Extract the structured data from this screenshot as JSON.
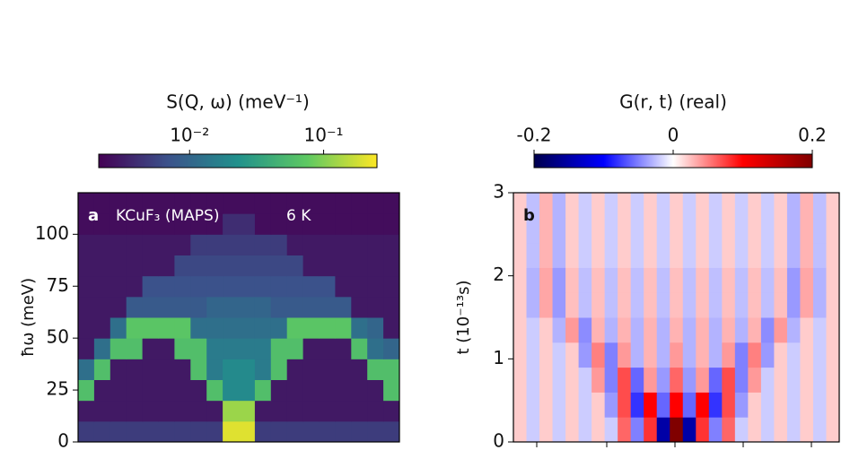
{
  "chart_data": [
    {
      "type": "heatmap",
      "panel_label": "a",
      "annotations": [
        "KCuF₃ (MAPS)",
        "6 K"
      ],
      "colorbar_label": "S(Q, ω) (meV⁻¹)",
      "ylabel": "ħω (meV)",
      "colormap": "viridis",
      "log_color": true,
      "clim": [
        0.0021,
        0.25
      ],
      "cticks": [
        {
          "value": 0.01,
          "label": "10⁻²"
        },
        {
          "value": 0.1,
          "label": "10⁻¹"
        }
      ],
      "ylim": [
        0,
        120
      ],
      "yticks": [
        0,
        25,
        50,
        75,
        100
      ],
      "ybins": [
        0,
        10,
        20,
        30,
        40,
        50,
        60,
        70,
        80,
        90,
        100,
        110,
        120
      ],
      "z": [
        [
          0.005,
          0.005,
          0.005,
          0.005,
          0.005,
          0.005,
          0.005,
          0.005,
          0.005,
          0.2,
          0.2,
          0.005,
          0.005,
          0.005,
          0.005,
          0.005,
          0.005,
          0.005,
          0.005,
          0.005
        ],
        [
          0.003,
          0.003,
          0.003,
          0.003,
          0.003,
          0.003,
          0.003,
          0.003,
          0.003,
          0.12,
          0.12,
          0.003,
          0.003,
          0.003,
          0.003,
          0.003,
          0.003,
          0.003,
          0.003,
          0.003
        ],
        [
          0.06,
          0.003,
          0.003,
          0.003,
          0.003,
          0.003,
          0.003,
          0.003,
          0.06,
          0.02,
          0.02,
          0.06,
          0.003,
          0.003,
          0.003,
          0.003,
          0.003,
          0.003,
          0.003,
          0.06
        ],
        [
          0.012,
          0.06,
          0.003,
          0.003,
          0.003,
          0.003,
          0.003,
          0.06,
          0.015,
          0.02,
          0.02,
          0.015,
          0.06,
          0.003,
          0.003,
          0.003,
          0.003,
          0.003,
          0.06,
          0.06
        ],
        [
          0.003,
          0.012,
          0.06,
          0.06,
          0.003,
          0.003,
          0.06,
          0.06,
          0.015,
          0.015,
          0.015,
          0.015,
          0.06,
          0.06,
          0.003,
          0.003,
          0.003,
          0.06,
          0.012,
          0.01
        ],
        [
          0.003,
          0.003,
          0.012,
          0.07,
          0.07,
          0.07,
          0.07,
          0.012,
          0.012,
          0.012,
          0.012,
          0.012,
          0.012,
          0.07,
          0.07,
          0.07,
          0.07,
          0.012,
          0.01,
          0.003
        ],
        [
          0.003,
          0.003,
          0.003,
          0.008,
          0.008,
          0.008,
          0.008,
          0.008,
          0.01,
          0.01,
          0.01,
          0.01,
          0.008,
          0.008,
          0.008,
          0.008,
          0.008,
          0.003,
          0.003,
          0.003
        ],
        [
          0.003,
          0.003,
          0.003,
          0.003,
          0.007,
          0.007,
          0.007,
          0.007,
          0.007,
          0.007,
          0.007,
          0.007,
          0.007,
          0.007,
          0.007,
          0.007,
          0.003,
          0.003,
          0.003,
          0.003
        ],
        [
          0.003,
          0.003,
          0.003,
          0.003,
          0.003,
          0.003,
          0.006,
          0.006,
          0.006,
          0.006,
          0.006,
          0.006,
          0.006,
          0.006,
          0.003,
          0.003,
          0.003,
          0.003,
          0.003,
          0.003
        ],
        [
          0.003,
          0.003,
          0.003,
          0.003,
          0.003,
          0.003,
          0.003,
          0.005,
          0.005,
          0.005,
          0.005,
          0.005,
          0.005,
          0.003,
          0.003,
          0.003,
          0.003,
          0.003,
          0.003,
          0.003
        ],
        [
          0.0025,
          0.0025,
          0.0025,
          0.0025,
          0.0025,
          0.0025,
          0.0025,
          0.0025,
          0.0025,
          0.004,
          0.004,
          0.0025,
          0.0025,
          0.0025,
          0.0025,
          0.0025,
          0.0025,
          0.0025,
          0.0025,
          0.0025
        ],
        [
          0.0025,
          0.0025,
          0.0025,
          0.0025,
          0.0025,
          0.0025,
          0.0025,
          0.0025,
          0.0025,
          0.0025,
          0.0025,
          0.0025,
          0.0025,
          0.0025,
          0.0025,
          0.0025,
          0.0025,
          0.0025,
          0.0025,
          0.0025
        ]
      ]
    },
    {
      "type": "heatmap",
      "panel_label": "b",
      "colorbar_label": "G(r, t) (real)",
      "ylabel": "t (10⁻¹³s)",
      "colormap": "seismic",
      "log_color": false,
      "clim": [
        -0.2,
        0.2
      ],
      "cticks": [
        -0.2,
        0,
        0.2
      ],
      "ylim": [
        0,
        3
      ],
      "yticks": [
        0,
        1,
        2,
        3
      ],
      "ybins": [
        0,
        0.3,
        0.6,
        0.9,
        1.2,
        1.5,
        1.8,
        2.1,
        2.4,
        2.7,
        3
      ],
      "z": [
        [
          0.02,
          -0.02,
          0.02,
          -0.02,
          0.02,
          -0.02,
          0.02,
          -0.02,
          0.06,
          -0.05,
          0.08,
          -0.15,
          0.2,
          -0.15,
          0.08,
          -0.05,
          0.06,
          -0.02,
          0.02,
          -0.02,
          0.02,
          -0.02,
          0.02,
          -0.02,
          0.02
        ],
        [
          0.02,
          -0.02,
          0.02,
          -0.02,
          0.02,
          -0.02,
          0.02,
          -0.04,
          0.07,
          -0.08,
          0.1,
          -0.06,
          0.1,
          -0.06,
          0.1,
          -0.08,
          0.07,
          -0.04,
          0.02,
          -0.02,
          0.02,
          -0.02,
          0.02,
          -0.02,
          0.02
        ],
        [
          0.02,
          -0.02,
          0.02,
          -0.02,
          0.02,
          -0.02,
          0.04,
          -0.05,
          0.07,
          -0.06,
          0.04,
          -0.04,
          0.06,
          -0.04,
          0.04,
          -0.06,
          0.07,
          -0.05,
          0.04,
          -0.02,
          0.02,
          -0.02,
          0.02,
          -0.02,
          0.02
        ],
        [
          0.02,
          -0.02,
          0.02,
          -0.02,
          0.02,
          -0.04,
          0.05,
          -0.05,
          0.04,
          -0.03,
          0.03,
          -0.03,
          0.04,
          -0.03,
          0.03,
          -0.03,
          0.04,
          -0.05,
          0.05,
          -0.04,
          0.02,
          -0.02,
          0.02,
          -0.02,
          0.02
        ],
        [
          0.02,
          -0.02,
          0.02,
          -0.03,
          0.04,
          -0.045,
          0.03,
          -0.03,
          0.03,
          -0.03,
          0.03,
          -0.03,
          0.03,
          -0.03,
          0.03,
          -0.03,
          0.03,
          -0.03,
          0.03,
          -0.045,
          0.04,
          -0.03,
          0.02,
          -0.02,
          0.02
        ],
        [
          0.02,
          -0.03,
          0.035,
          -0.04,
          0.025,
          -0.025,
          0.025,
          -0.025,
          0.025,
          -0.025,
          0.025,
          -0.025,
          0.025,
          -0.025,
          0.025,
          -0.025,
          0.025,
          -0.025,
          0.025,
          -0.025,
          0.025,
          -0.04,
          0.035,
          -0.03,
          0.02
        ],
        [
          0.02,
          -0.03,
          0.035,
          -0.04,
          0.025,
          -0.025,
          0.025,
          -0.025,
          0.025,
          -0.025,
          0.025,
          -0.025,
          0.025,
          -0.025,
          0.025,
          -0.025,
          0.025,
          -0.025,
          0.025,
          -0.025,
          0.025,
          -0.04,
          0.035,
          -0.03,
          0.02
        ],
        [
          0.02,
          -0.025,
          0.03,
          -0.03,
          0.02,
          -0.02,
          0.02,
          -0.02,
          0.02,
          -0.02,
          0.02,
          -0.02,
          0.02,
          -0.02,
          0.02,
          -0.02,
          0.02,
          -0.02,
          0.02,
          -0.02,
          0.02,
          -0.03,
          0.03,
          -0.025,
          0.02
        ],
        [
          0.02,
          -0.025,
          0.03,
          -0.03,
          0.02,
          -0.02,
          0.02,
          -0.02,
          0.02,
          -0.02,
          0.02,
          -0.02,
          0.02,
          -0.02,
          0.02,
          -0.02,
          0.02,
          -0.02,
          0.02,
          -0.02,
          0.02,
          -0.03,
          0.03,
          -0.025,
          0.02
        ],
        [
          0.02,
          -0.025,
          0.03,
          -0.03,
          0.02,
          -0.02,
          0.02,
          -0.02,
          0.02,
          -0.02,
          0.02,
          -0.02,
          0.02,
          -0.02,
          0.02,
          -0.02,
          0.02,
          -0.02,
          0.02,
          -0.02,
          0.02,
          -0.03,
          0.03,
          -0.025,
          0.02
        ]
      ]
    }
  ]
}
